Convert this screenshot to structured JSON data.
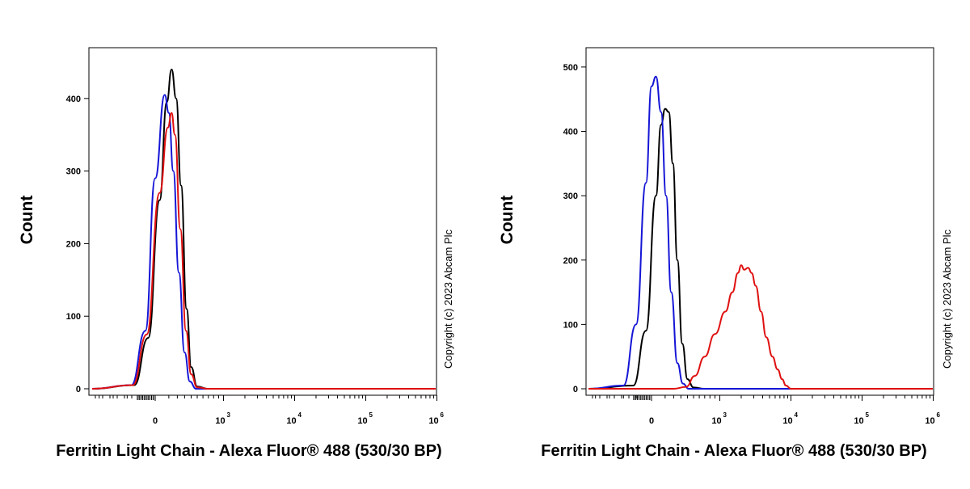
{
  "chart_data": [
    {
      "type": "line",
      "xlabel": "Ferritin Light Chain - Alexa Fluor® 488 (530/30 BP)",
      "ylabel": "Count",
      "copyright": "Copyright (c) 2023 Abcam Plc",
      "x_scale": "biexponential",
      "ylim": [
        0,
        470
      ],
      "y_ticks": [
        0,
        100,
        200,
        300,
        400
      ],
      "x_ticks": [
        {
          "value": 0,
          "base": "0",
          "exp": ""
        },
        {
          "value": 1000,
          "base": "10",
          "exp": "3"
        },
        {
          "value": 10000,
          "base": "10",
          "exp": "4"
        },
        {
          "value": 100000,
          "base": "10",
          "exp": "5"
        },
        {
          "value": 1000000,
          "base": "10",
          "exp": "6"
        }
      ],
      "series": [
        {
          "color": "#000000",
          "points": [
            [
              -450,
              0
            ],
            [
              -150,
              5
            ],
            [
              -50,
              70
            ],
            [
              20,
              260
            ],
            [
              80,
              395
            ],
            [
              130,
              440
            ],
            [
              185,
              400
            ],
            [
              250,
              280
            ],
            [
              330,
              110
            ],
            [
              400,
              30
            ],
            [
              500,
              3
            ],
            [
              700,
              0
            ],
            [
              1000000,
              0
            ]
          ]
        },
        {
          "color": "#1515d6",
          "points": [
            [
              -450,
              0
            ],
            [
              -170,
              5
            ],
            [
              -70,
              80
            ],
            [
              0,
              290
            ],
            [
              60,
              405
            ],
            [
              100,
              380
            ],
            [
              150,
              300
            ],
            [
              220,
              160
            ],
            [
              300,
              50
            ],
            [
              380,
              10
            ],
            [
              480,
              0
            ],
            [
              1000000,
              0
            ]
          ]
        },
        {
          "color": "#e01010",
          "points": [
            [
              -450,
              0
            ],
            [
              -160,
              5
            ],
            [
              -60,
              75
            ],
            [
              20,
              270
            ],
            [
              90,
              360
            ],
            [
              130,
              380
            ],
            [
              170,
              350
            ],
            [
              240,
              220
            ],
            [
              320,
              80
            ],
            [
              400,
              20
            ],
            [
              500,
              2
            ],
            [
              700,
              0
            ],
            [
              1000000,
              0
            ]
          ]
        }
      ]
    },
    {
      "type": "line",
      "xlabel": "Ferritin Light Chain - Alexa Fluor® 488 (530/30 BP)",
      "ylabel": "Count",
      "copyright": "Copyright (c) 2023 Abcam Plc",
      "x_scale": "biexponential",
      "ylim": [
        0,
        530
      ],
      "y_ticks": [
        0,
        100,
        200,
        300,
        400,
        500
      ],
      "x_ticks": [
        {
          "value": 0,
          "base": "0",
          "exp": ""
        },
        {
          "value": 1000,
          "base": "10",
          "exp": "3"
        },
        {
          "value": 10000,
          "base": "10",
          "exp": "4"
        },
        {
          "value": 100000,
          "base": "10",
          "exp": "5"
        },
        {
          "value": 1000000,
          "base": "10",
          "exp": "6"
        }
      ],
      "series": [
        {
          "color": "#000000",
          "points": [
            [
              -450,
              0
            ],
            [
              -130,
              5
            ],
            [
              -40,
              90
            ],
            [
              20,
              300
            ],
            [
              60,
              410
            ],
            [
              100,
              435
            ],
            [
              140,
              430
            ],
            [
              190,
              350
            ],
            [
              250,
              200
            ],
            [
              320,
              70
            ],
            [
              400,
              15
            ],
            [
              500,
              2
            ],
            [
              700,
              0
            ],
            [
              1000000,
              0
            ]
          ]
        },
        {
          "color": "#1515d6",
          "points": [
            [
              -450,
              0
            ],
            [
              -200,
              5
            ],
            [
              -110,
              100
            ],
            [
              -40,
              320
            ],
            [
              0,
              470
            ],
            [
              20,
              485
            ],
            [
              60,
              430
            ],
            [
              110,
              300
            ],
            [
              170,
              150
            ],
            [
              250,
              40
            ],
            [
              330,
              8
            ],
            [
              420,
              0
            ],
            [
              1000000,
              0
            ]
          ]
        },
        {
          "color": "#e01010",
          "points": [
            [
              -450,
              0
            ],
            [
              200,
              0
            ],
            [
              380,
              3
            ],
            [
              520,
              20
            ],
            [
              700,
              50
            ],
            [
              900,
              85
            ],
            [
              1200,
              120
            ],
            [
              1500,
              150
            ],
            [
              1800,
              180
            ],
            [
              2000,
              192
            ],
            [
              2200,
              185
            ],
            [
              2500,
              188
            ],
            [
              2800,
              180
            ],
            [
              3200,
              160
            ],
            [
              3800,
              120
            ],
            [
              4500,
              80
            ],
            [
              5500,
              50
            ],
            [
              6500,
              30
            ],
            [
              7500,
              15
            ],
            [
              8500,
              5
            ],
            [
              10000,
              0
            ],
            [
              1000000,
              0
            ]
          ]
        }
      ]
    }
  ]
}
